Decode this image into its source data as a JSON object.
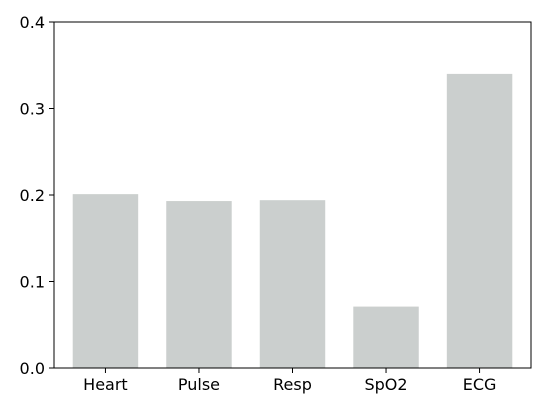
{
  "chart_data": {
    "type": "bar",
    "categories": [
      "Heart",
      "Pulse",
      "Resp",
      "SpO2",
      "ECG"
    ],
    "values": [
      0.201,
      0.193,
      0.194,
      0.071,
      0.34
    ],
    "ylim": [
      0,
      0.4
    ],
    "yticks": [
      0.0,
      0.1,
      0.2,
      0.3,
      0.4
    ],
    "ytick_labels": [
      "0.0",
      "0.1",
      "0.2",
      "0.3",
      "0.4"
    ],
    "bar_color": "#cbcfce",
    "grid": false,
    "legend": "none"
  }
}
